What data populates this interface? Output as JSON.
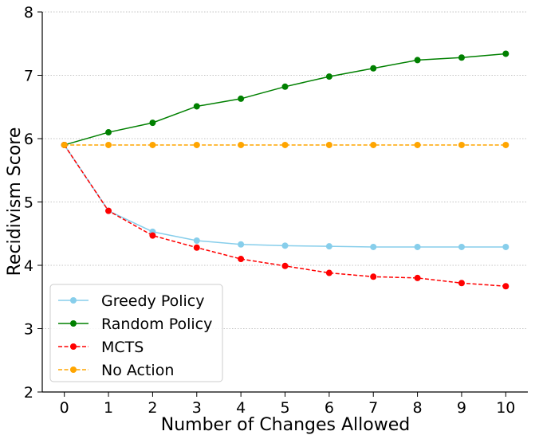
{
  "chart_data": {
    "type": "line",
    "title": "",
    "xlabel": "Number of Changes Allowed",
    "ylabel": "Recidivism Score",
    "x": [
      0,
      1,
      2,
      3,
      4,
      5,
      6,
      7,
      8,
      9,
      10
    ],
    "xlim": [
      -0.5,
      10.5
    ],
    "ylim": [
      2,
      8
    ],
    "xticks": [
      0,
      1,
      2,
      3,
      4,
      5,
      6,
      7,
      8,
      9,
      10
    ],
    "yticks": [
      2,
      3,
      4,
      5,
      6,
      7,
      8
    ],
    "grid": "horizontal dotted",
    "legend_position": "lower-left",
    "series": [
      {
        "name": "Greedy Policy",
        "color": "#87ceeb",
        "linestyle": "solid",
        "values": [
          5.9,
          4.86,
          4.53,
          4.39,
          4.33,
          4.31,
          4.3,
          4.29,
          4.29,
          4.29,
          4.29
        ]
      },
      {
        "name": "Random Policy",
        "color": "#008000",
        "linestyle": "solid",
        "values": [
          5.9,
          6.1,
          6.25,
          6.51,
          6.63,
          6.82,
          6.98,
          7.11,
          7.24,
          7.28,
          7.34
        ]
      },
      {
        "name": "MCTS",
        "color": "#ff0000",
        "linestyle": "dashed",
        "values": [
          5.9,
          4.86,
          4.47,
          4.28,
          4.1,
          3.99,
          3.88,
          3.82,
          3.8,
          3.72,
          3.67
        ]
      },
      {
        "name": "No Action",
        "color": "#ffa500",
        "linestyle": "dashed",
        "values": [
          5.9,
          5.9,
          5.9,
          5.9,
          5.9,
          5.9,
          5.9,
          5.9,
          5.9,
          5.9,
          5.9
        ]
      }
    ]
  }
}
